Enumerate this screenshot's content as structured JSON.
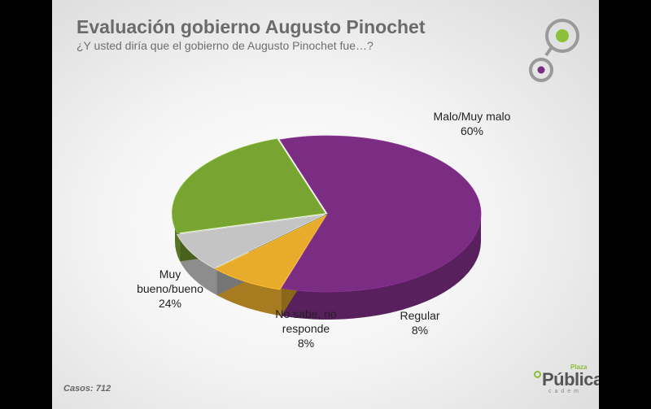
{
  "title": "Evaluación gobierno Augusto Pinochet",
  "subtitle": "¿Y usted diría que el gobierno de Augusto Pinochet fue…?",
  "footer": {
    "casos": "Casos: 712"
  },
  "logo": {
    "word": "Pública",
    "superscript": "Plaza",
    "tagline": "cadem"
  },
  "colors": {
    "purple": "#7b2c83",
    "orange": "#e8ab2c",
    "gray": "#c4c4c4",
    "green": "#78a432",
    "accent_green": "#8dbf3a"
  },
  "chart_data": {
    "type": "pie",
    "style": "3d",
    "slices": [
      {
        "label_lines": [
          "Malo/Muy malo"
        ],
        "value": 60,
        "value_label": "60%",
        "color": "#7b2c83"
      },
      {
        "label_lines": [
          "Regular"
        ],
        "value": 8,
        "value_label": "8%",
        "color": "#e8ab2c"
      },
      {
        "label_lines": [
          "No sabe, no",
          "responde"
        ],
        "value": 8,
        "value_label": "8%",
        "color": "#c4c4c4"
      },
      {
        "label_lines": [
          "Muy",
          "bueno/bueno"
        ],
        "value": 24,
        "value_label": "24%",
        "color": "#78a432"
      }
    ]
  }
}
